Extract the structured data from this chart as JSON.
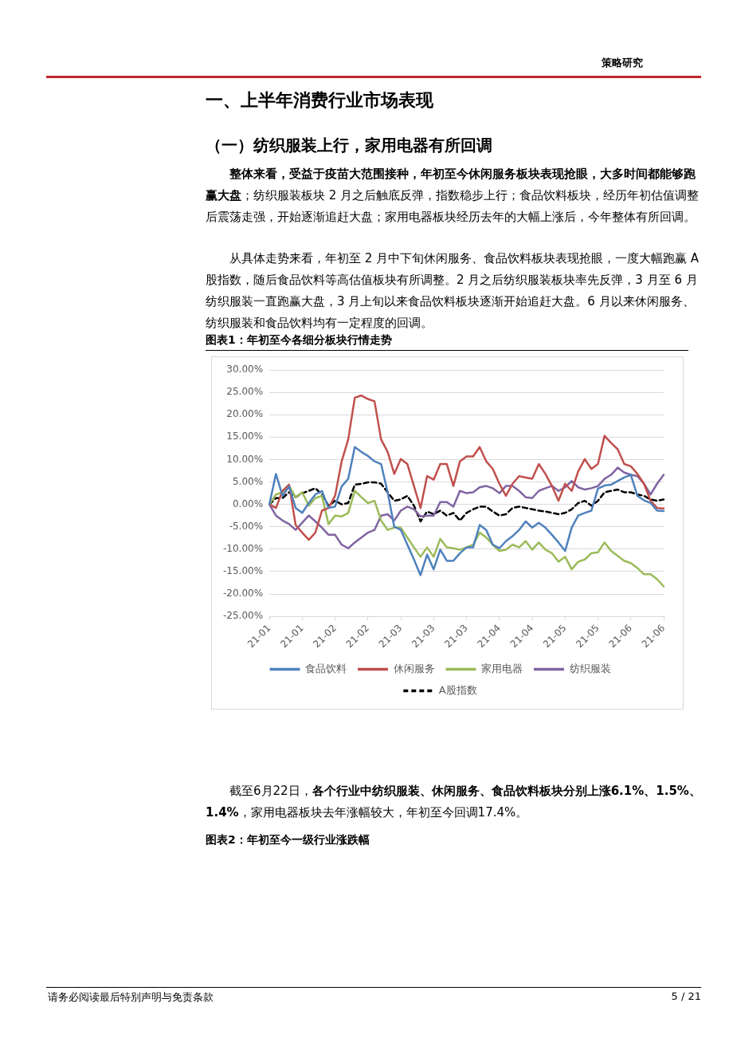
{
  "chart_data": [
    {
      "type": "other",
      "annotations": [
        "策略研究",
        "一、上半年消费行业市场表现",
        "（一）纺织服装上行，家用电器有所回调",
        "整体来看，受益于疫苗大范围接种，年初至今休闲服务板块表现抢眼，大多时间都能够跑赢大盘",
        "；纺织服装板块 2 月之后触底反弹，指数稳步上行；食品饮料板块，经历年初估值调整后震荡走强，开始逐渐追赶大盘；家用电器板块经历去年的大幅上涨后，今年整体有所回调。",
        "从具体走势来看，年初至 2 月中下旬休闲服务、食品饮料板块表现抢眼，一度大幅跑赢 A 股指数，随后食品饮料等高估值板块有所调整。2 月之后纺织服装板块率先反弹，3 月至 6 月纺织服装一直跑赢大盘，3 月上旬以来食品饮料板块逐渐开始追赶大盘。6 月以来休闲服务、纺织服装和食品饮料均有一定程度的回调。"
      ]
    },
    {
      "type": "line",
      "title": "图表1：年初至今各细分板块行情走势",
      "categories": [
        "21-01",
        null,
        null,
        null,
        null,
        "21-01",
        null,
        null,
        null,
        null,
        "21-02",
        null,
        null,
        null,
        null,
        "21-02",
        null,
        null,
        null,
        null,
        "21-03",
        null,
        null,
        null,
        null,
        "21-03",
        null,
        null,
        null,
        null,
        "21-03",
        null,
        null,
        null,
        null,
        "21-04",
        null,
        null,
        null,
        null,
        "21-04",
        null,
        null,
        null,
        null,
        "21-05",
        null,
        null,
        null,
        null,
        "21-05",
        null,
        null,
        null,
        null,
        "21-06",
        null,
        null,
        null,
        null,
        "21-06"
      ],
      "series": [
        {
          "name": "食品饮料",
          "color": "#4f81bd",
          "values": [
            0,
            6.8,
            1.9,
            4,
            -0.8,
            -1.9,
            0.3,
            2.2,
            3,
            -0.8,
            -0.5,
            4,
            5.7,
            12.8,
            11.7,
            10.8,
            9.6,
            9,
            2.7,
            -5,
            -5.7,
            -9,
            -12.3,
            -15.8,
            -11.2,
            -14.5,
            -10.1,
            -12.6,
            -12.6,
            -10.9,
            -9.6,
            -9.6,
            -4.6,
            -5.7,
            -9,
            -9.8,
            -8.2,
            -7.1,
            -5.7,
            -3.8,
            -5.2,
            -4.1,
            -5.2,
            -6.8,
            -8.5,
            -10.4,
            -5.2,
            -2.5,
            -1.9,
            -1.4,
            3.5,
            4.2,
            4.4,
            5.2,
            6,
            6.6,
            1.9,
            0.9,
            0.3,
            -1.4,
            -1.5
          ]
        },
        {
          "name": "休闲服务",
          "color": "#c0504d",
          "values": [
            0,
            -0.8,
            3,
            4.4,
            -4.6,
            -6.3,
            -7.9,
            -6.3,
            -1.4,
            -0.8,
            1.9,
            9.6,
            14.5,
            23.8,
            24.3,
            23.5,
            23,
            14.5,
            11.7,
            6.8,
            10.1,
            9,
            4.1,
            -0.8,
            6.3,
            5.5,
            9,
            9,
            4.1,
            9.6,
            10.7,
            10.7,
            12.8,
            9.6,
            7.9,
            4.6,
            1.9,
            4.6,
            6.3,
            6,
            5.7,
            9,
            6.8,
            4.1,
            0.8,
            4.6,
            3,
            7.4,
            10.1,
            7.9,
            9,
            15.3,
            13.7,
            12.3,
            9,
            8.5,
            6.8,
            4.6,
            0.8,
            -0.8,
            -0.9
          ]
        },
        {
          "name": "家用电器",
          "color": "#9bbb59",
          "values": [
            0,
            2.2,
            2.7,
            4.1,
            1.6,
            2.7,
            -0.3,
            1.4,
            1.9,
            -4.4,
            -2.5,
            -2.7,
            -1.9,
            3,
            1.6,
            0.3,
            0.8,
            -3.6,
            -5.7,
            -5.2,
            -5.2,
            -7.4,
            -9.6,
            -11.7,
            -9.6,
            -11.7,
            -7.7,
            -9.6,
            -9.8,
            -10.1,
            -9.6,
            -9,
            -6.3,
            -7.4,
            -9,
            -10.4,
            -10.1,
            -9,
            -9.6,
            -8.2,
            -10.1,
            -8.5,
            -10.1,
            -10.9,
            -12.8,
            -11.7,
            -14.5,
            -12.8,
            -12.3,
            -10.9,
            -10.7,
            -8.5,
            -10.4,
            -11.5,
            -12.6,
            -13.1,
            -14.2,
            -15.6,
            -15.6,
            -16.7,
            -18.3
          ]
        },
        {
          "name": "纺织服装",
          "color": "#8064a2",
          "values": [
            0,
            -2.5,
            -3.6,
            -4.4,
            -5.7,
            -4.1,
            -2.5,
            -3.8,
            -5.2,
            -6.8,
            -6.8,
            -9,
            -9.8,
            -8.5,
            -7.4,
            -6.3,
            -5.7,
            -2.5,
            -2.2,
            -3.6,
            -1.4,
            -0.5,
            -1.1,
            -2.7,
            -2.5,
            -2.5,
            0.5,
            0.5,
            -0.5,
            3,
            2.5,
            2.7,
            3.8,
            4.1,
            3.6,
            2.5,
            4.1,
            4.1,
            3,
            1.6,
            1.4,
            3,
            3.6,
            4.1,
            3,
            3.8,
            5.2,
            3.8,
            3.3,
            3.6,
            4.1,
            5.7,
            6.6,
            8.2,
            7.1,
            6.6,
            6.3,
            4.6,
            2.2,
            4.6,
            6.6
          ]
        },
        {
          "name": "A股指数",
          "color": "#000000",
          "line_style": "dashed",
          "values": [
            0,
            1.4,
            1.4,
            2.7,
            1.6,
            2.5,
            3,
            3.6,
            2.2,
            -0.3,
            0.8,
            0,
            0.3,
            4.4,
            4.6,
            4.9,
            4.9,
            4.6,
            2.7,
            0.8,
            1.1,
            1.9,
            -0.3,
            -3.8,
            -1.6,
            -2.2,
            -1.4,
            -2.5,
            -1.9,
            -3.6,
            -1.9,
            -1.1,
            -0.5,
            -0.5,
            -1.6,
            -2.5,
            -2.2,
            -0.8,
            -0.5,
            -0.8,
            -1.1,
            -1.4,
            -1.6,
            -1.9,
            -2.2,
            -1.9,
            -1.1,
            0.3,
            0.8,
            -0.3,
            0.8,
            2.7,
            3,
            3.3,
            2.7,
            2.7,
            2.2,
            1.9,
            1.1,
            0.8,
            1.1
          ]
        }
      ],
      "ylim": [
        -25,
        30
      ],
      "yticks": [
        {
          "value": -25,
          "label": "-25.00%"
        },
        {
          "value": -20,
          "label": "-20.00%"
        },
        {
          "value": -15,
          "label": "-15.00%"
        },
        {
          "value": -10,
          "label": "-10.00%"
        },
        {
          "value": -5,
          "label": "-5.00%"
        },
        {
          "value": 0,
          "label": "0.00%"
        },
        {
          "value": 5,
          "label": "5.00%"
        },
        {
          "value": 10,
          "label": "10.00%"
        },
        {
          "value": 15,
          "label": "15.00%"
        },
        {
          "value": 20,
          "label": "20.00%"
        },
        {
          "value": 25,
          "label": "25.00%"
        },
        {
          "value": 30,
          "label": "30.00%"
        }
      ],
      "grid": "y",
      "legend": "bottom",
      "marker": "none",
      "line_style": "solid"
    },
    {
      "type": "other",
      "annotations": [
        "截至6月22日，",
        "各个行业中纺织服装、休闲服务、食品饮料板块分别上涨6.1%、1.5%、1.4%",
        "，家用电器板块去年涨幅较大，年初至今回调17.4%。",
        "图表2：年初至今一级行业涨跌幅",
        "请务必阅读最后特别声明与免责条款",
        "5 / 21"
      ]
    }
  ]
}
